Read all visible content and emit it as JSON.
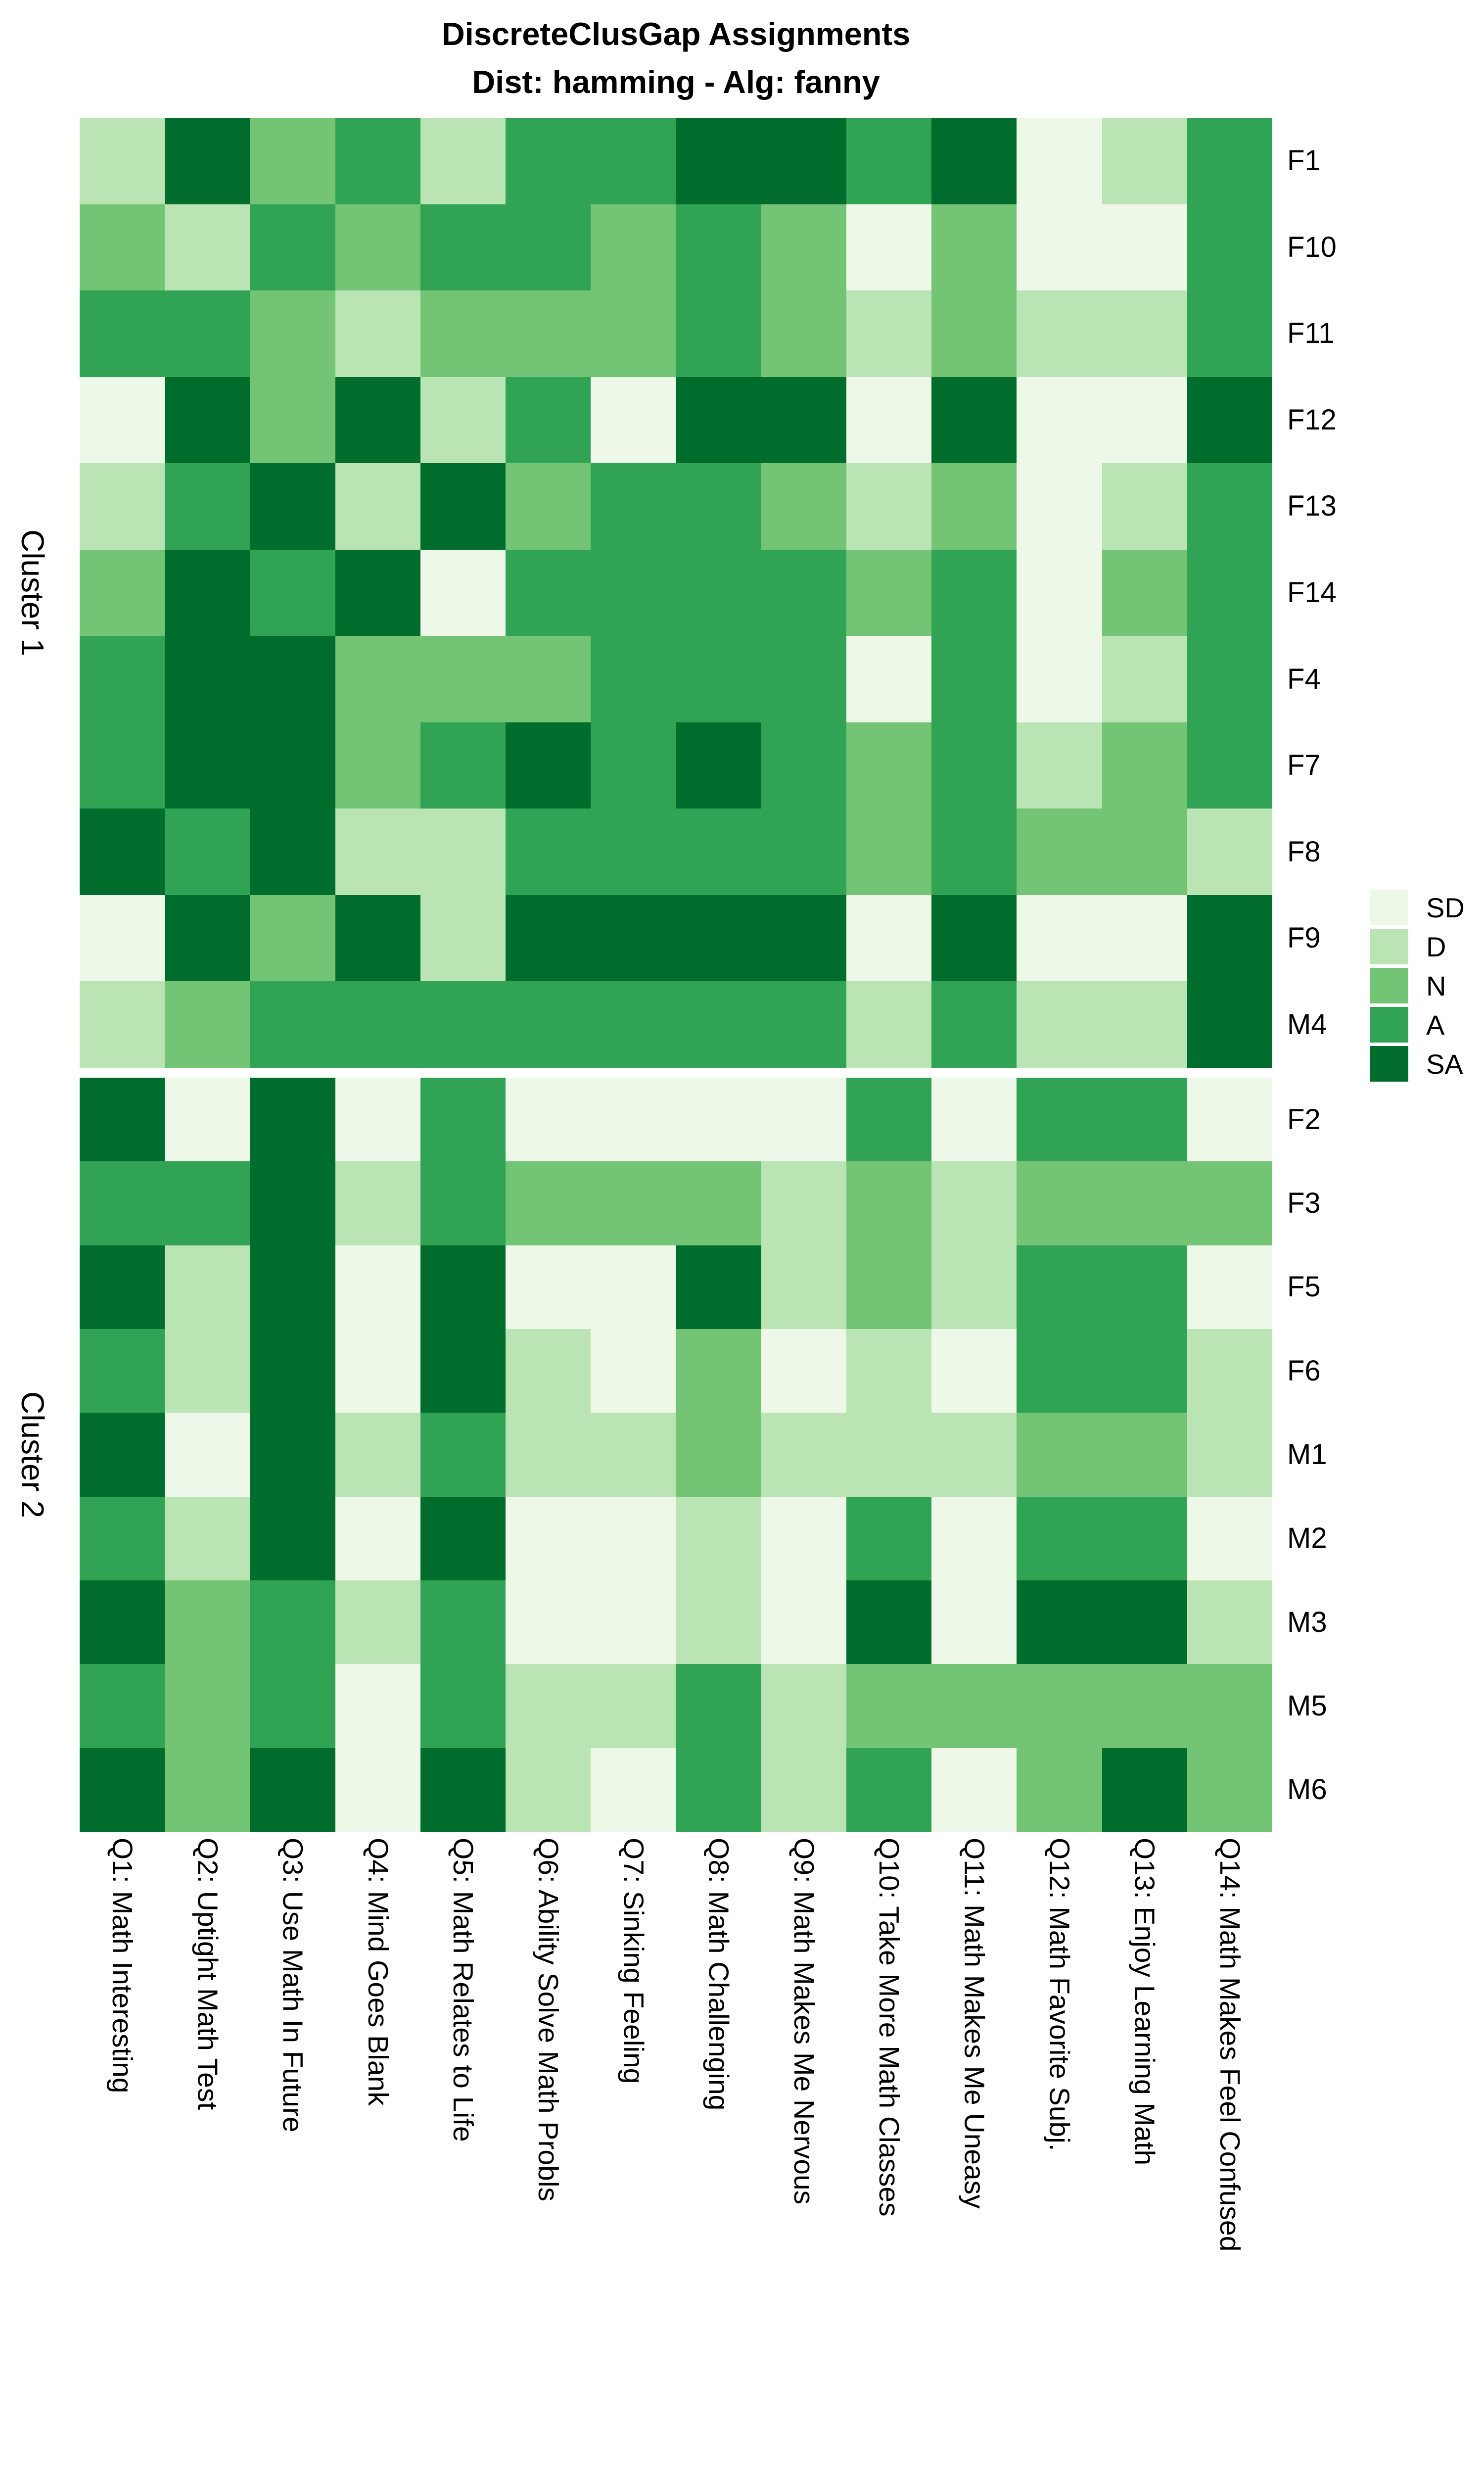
{
  "title": {
    "line1": "DiscreteClusGap Assignments",
    "line2": "Dist: hamming - Alg: fanny"
  },
  "chart_data": {
    "type": "heatmap",
    "x_labels": [
      "Q1: Math Interesting",
      "Q2: Uptight Math Test",
      "Q3: Use Math In Future",
      "Q4: Mind Goes Blank",
      "Q5: Math Relates to Life",
      "Q6: Ability Solve Math Probls",
      "Q7: Sinking Feeling",
      "Q8: Math Challenging",
      "Q9: Math Makes Me Nervous",
      "Q10: Take More Math Classes",
      "Q11: Math Makes Me Uneasy",
      "Q12: Math Favorite Subj.",
      "Q13: Enjoy Learning Math",
      "Q14: Math Makes Feel Confused"
    ],
    "value_levels": [
      "SD",
      "D",
      "N",
      "A",
      "SA"
    ],
    "level_colors": {
      "SD": "#EDF8E9",
      "D": "#BAE4B3",
      "N": "#74C476",
      "A": "#31A354",
      "SA": "#006D2C"
    },
    "legend": {
      "position": "right",
      "items": [
        "SD",
        "D",
        "N",
        "A",
        "SA"
      ]
    },
    "clusters": [
      {
        "name": "Cluster 1",
        "rows": [
          {
            "label": "F1",
            "values": [
              "D",
              "SA",
              "N",
              "A",
              "D",
              "A",
              "A",
              "SA",
              "SA",
              "A",
              "SA",
              "SD",
              "D",
              "A"
            ]
          },
          {
            "label": "F10",
            "values": [
              "N",
              "D",
              "A",
              "N",
              "A",
              "A",
              "N",
              "A",
              "N",
              "SD",
              "N",
              "SD",
              "SD",
              "A"
            ]
          },
          {
            "label": "F11",
            "values": [
              "A",
              "A",
              "N",
              "D",
              "N",
              "N",
              "N",
              "A",
              "N",
              "D",
              "N",
              "D",
              "D",
              "A"
            ]
          },
          {
            "label": "F12",
            "values": [
              "SD",
              "SA",
              "N",
              "SA",
              "D",
              "A",
              "SD",
              "SA",
              "SA",
              "SD",
              "SA",
              "SD",
              "SD",
              "SA"
            ]
          },
          {
            "label": "F13",
            "values": [
              "D",
              "A",
              "SA",
              "D",
              "SA",
              "N",
              "A",
              "A",
              "N",
              "D",
              "N",
              "SD",
              "D",
              "A"
            ]
          },
          {
            "label": "F14",
            "values": [
              "N",
              "SA",
              "A",
              "SA",
              "SD",
              "A",
              "A",
              "A",
              "A",
              "N",
              "A",
              "SD",
              "N",
              "A"
            ]
          },
          {
            "label": "F4",
            "values": [
              "A",
              "SA",
              "SA",
              "N",
              "N",
              "N",
              "A",
              "A",
              "A",
              "SD",
              "A",
              "SD",
              "D",
              "A"
            ]
          },
          {
            "label": "F7",
            "values": [
              "A",
              "SA",
              "SA",
              "N",
              "A",
              "SA",
              "A",
              "SA",
              "A",
              "N",
              "A",
              "D",
              "N",
              "A"
            ]
          },
          {
            "label": "F8",
            "values": [
              "SA",
              "A",
              "SA",
              "D",
              "D",
              "A",
              "A",
              "A",
              "A",
              "N",
              "A",
              "N",
              "N",
              "D"
            ]
          },
          {
            "label": "F9",
            "values": [
              "SD",
              "SA",
              "N",
              "SA",
              "D",
              "SA",
              "SA",
              "SA",
              "SA",
              "SD",
              "SA",
              "SD",
              "SD",
              "SA"
            ]
          },
          {
            "label": "M4",
            "values": [
              "D",
              "N",
              "A",
              "A",
              "A",
              "A",
              "A",
              "A",
              "A",
              "D",
              "A",
              "D",
              "D",
              "SA"
            ]
          }
        ]
      },
      {
        "name": "Cluster 2",
        "rows": [
          {
            "label": "F2",
            "values": [
              "SA",
              "SD",
              "SA",
              "SD",
              "A",
              "SD",
              "SD",
              "SD",
              "SD",
              "A",
              "SD",
              "A",
              "A",
              "SD"
            ]
          },
          {
            "label": "F3",
            "values": [
              "A",
              "A",
              "SA",
              "D",
              "A",
              "N",
              "N",
              "N",
              "D",
              "N",
              "D",
              "N",
              "N",
              "N"
            ]
          },
          {
            "label": "F5",
            "values": [
              "SA",
              "D",
              "SA",
              "SD",
              "SA",
              "SD",
              "SD",
              "SA",
              "D",
              "N",
              "D",
              "A",
              "A",
              "SD"
            ]
          },
          {
            "label": "F6",
            "values": [
              "A",
              "D",
              "SA",
              "SD",
              "SA",
              "D",
              "SD",
              "N",
              "SD",
              "D",
              "SD",
              "A",
              "A",
              "D"
            ]
          },
          {
            "label": "M1",
            "values": [
              "SA",
              "SD",
              "SA",
              "D",
              "A",
              "D",
              "D",
              "N",
              "D",
              "D",
              "D",
              "N",
              "N",
              "D"
            ]
          },
          {
            "label": "M2",
            "values": [
              "A",
              "D",
              "SA",
              "SD",
              "SA",
              "SD",
              "SD",
              "D",
              "SD",
              "A",
              "SD",
              "A",
              "A",
              "SD"
            ]
          },
          {
            "label": "M3",
            "values": [
              "SA",
              "N",
              "A",
              "D",
              "A",
              "SD",
              "SD",
              "D",
              "SD",
              "SA",
              "SD",
              "SA",
              "SA",
              "D"
            ]
          },
          {
            "label": "M5",
            "values": [
              "A",
              "N",
              "A",
              "SD",
              "A",
              "D",
              "D",
              "A",
              "D",
              "N",
              "N",
              "N",
              "N",
              "N"
            ]
          },
          {
            "label": "M6",
            "values": [
              "SA",
              "N",
              "SA",
              "SD",
              "SA",
              "D",
              "SD",
              "A",
              "D",
              "A",
              "SD",
              "N",
              "SA",
              "N"
            ]
          }
        ]
      }
    ]
  }
}
